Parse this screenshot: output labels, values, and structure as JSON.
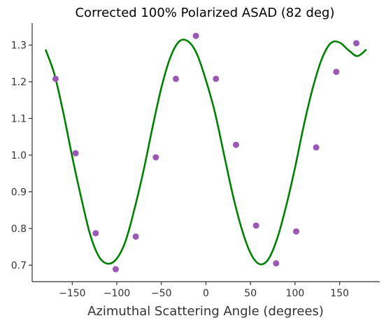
{
  "chart_data": {
    "type": "scatter",
    "title": "Corrected 100% Polarized ASAD (82 deg)",
    "xlabel": "Azimuthal Scattering Angle (degrees)",
    "ylabel": "",
    "xlim": [
      -195,
      195
    ],
    "ylim": [
      0.655,
      1.36
    ],
    "xticks": [
      -150,
      -100,
      -50,
      0,
      50,
      100,
      150
    ],
    "yticks": [
      0.7,
      0.8,
      0.9,
      1.0,
      1.1,
      1.2,
      1.3
    ],
    "xtick_labels": [
      "−150",
      "−100",
      "−50",
      "0",
      "50",
      "100",
      "150"
    ],
    "ytick_labels": [
      "0.7",
      "0.8",
      "0.9",
      "1.0",
      "1.1",
      "1.2",
      "1.3"
    ],
    "grid": false,
    "colors": {
      "points": "#9b59b6",
      "fit": "#008000",
      "axes": "#333333"
    },
    "series": [
      {
        "kind": "points",
        "x": [
          -168.75,
          -146.25,
          -123.75,
          -101.25,
          -78.75,
          -56.25,
          -33.75,
          -11.25,
          11.25,
          33.75,
          56.25,
          78.75,
          101.25,
          123.75,
          146.25,
          168.75
        ],
        "y": [
          1.208,
          1.005,
          0.787,
          0.689,
          0.778,
          0.994,
          1.208,
          1.325,
          1.208,
          1.028,
          0.808,
          0.705,
          0.792,
          1.021,
          1.227,
          1.305
        ]
      },
      {
        "kind": "fit",
        "x": [
          -180,
          -170,
          -160,
          -150,
          -140,
          -130,
          -120,
          -110,
          -100,
          -90,
          -80,
          -70,
          -60,
          -50,
          -40,
          -30,
          -20,
          -10,
          0,
          10,
          20,
          30,
          40,
          50,
          60,
          70,
          80,
          90,
          100,
          110,
          120,
          130,
          140,
          150,
          160,
          170,
          180
        ],
        "y": [
          1.288,
          1.22,
          1.115,
          0.995,
          0.884,
          0.784,
          0.723,
          0.704,
          0.718,
          0.767,
          0.855,
          0.958,
          1.075,
          1.184,
          1.266,
          1.31,
          1.31,
          1.275,
          1.204,
          1.117,
          1.005,
          0.893,
          0.8,
          0.733,
          0.703,
          0.716,
          0.773,
          0.861,
          0.966,
          1.083,
          1.184,
          1.262,
          1.305,
          1.307,
          1.286,
          1.27,
          1.288
        ]
      }
    ]
  }
}
